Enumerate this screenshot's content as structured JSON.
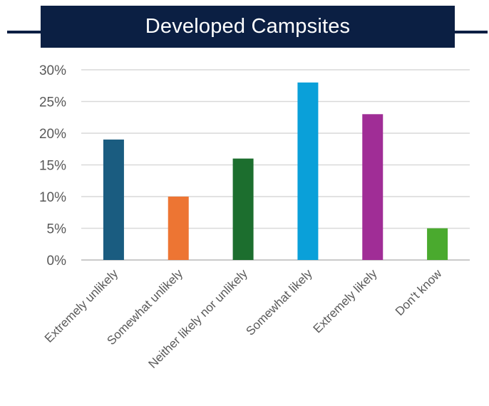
{
  "chart_data": {
    "type": "bar",
    "title": "Developed Campsites",
    "xlabel": "",
    "ylabel": "",
    "categories": [
      "Extremely unlikely",
      "Somewhat unlikely",
      "Neither likely nor unlikely",
      "Somewhat likely",
      "Extremely likely",
      "Don't know"
    ],
    "values": [
      19,
      10,
      16,
      28,
      23,
      5
    ],
    "colors": [
      "#1a5c80",
      "#ed7533",
      "#1c6e2e",
      "#0aa0d9",
      "#a02d96",
      "#4aaa2e"
    ],
    "ylim": [
      0,
      30
    ],
    "yticks": [
      0,
      5,
      10,
      15,
      20,
      25,
      30
    ],
    "ytick_labels": [
      "0%",
      "5%",
      "10%",
      "15%",
      "20%",
      "25%",
      "30%"
    ],
    "grid": true,
    "legend": "none"
  }
}
